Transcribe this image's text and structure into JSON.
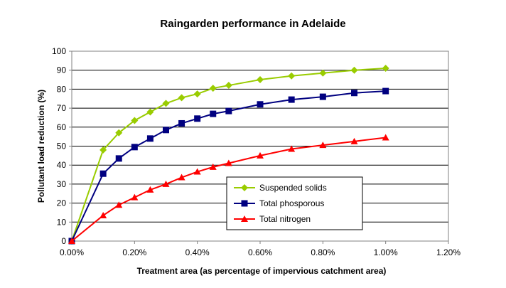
{
  "chart_data": {
    "type": "line",
    "title": "Raingarden performance in Adelaide",
    "xlabel": "Treatment area (as percentage of impervious catchment area)",
    "ylabel": "Pollutant load reduction (%)",
    "xlim": [
      0,
      1.2
    ],
    "ylim": [
      0,
      100
    ],
    "x_ticks": [
      0,
      0.2,
      0.4,
      0.6,
      0.8,
      1.0,
      1.2
    ],
    "x_tick_labels": [
      "0.00%",
      "0.20%",
      "0.40%",
      "0.60%",
      "0.80%",
      "1.00%",
      "1.20%"
    ],
    "y_ticks": [
      0,
      10,
      20,
      30,
      40,
      50,
      60,
      70,
      80,
      90,
      100
    ],
    "y_tick_labels": [
      "0",
      "10",
      "20",
      "30",
      "40",
      "50",
      "60",
      "70",
      "80",
      "90",
      "100"
    ],
    "grid": "horizontal major gridlines",
    "legend_position": "inside lower-right",
    "series": [
      {
        "name": "Suspended solids",
        "color": "#99CC00",
        "marker": "diamond",
        "x": [
          0,
          0.1,
          0.15,
          0.2,
          0.25,
          0.3,
          0.35,
          0.4,
          0.45,
          0.5,
          0.6,
          0.7,
          0.8,
          0.9,
          1.0
        ],
        "y": [
          0,
          48,
          57,
          63.5,
          68,
          72.5,
          75.5,
          77.5,
          80.5,
          82,
          85,
          87,
          88.5,
          90,
          91
        ]
      },
      {
        "name": "Total phosporous",
        "color": "#000080",
        "marker": "square",
        "x": [
          0,
          0.1,
          0.15,
          0.2,
          0.25,
          0.3,
          0.35,
          0.4,
          0.45,
          0.5,
          0.6,
          0.7,
          0.8,
          0.9,
          1.0
        ],
        "y": [
          0,
          35.5,
          43.5,
          49.5,
          54,
          58.5,
          62,
          64.5,
          67,
          68.5,
          72,
          74.5,
          76,
          78,
          79
        ]
      },
      {
        "name": "Total nitrogen",
        "color": "#FF0000",
        "marker": "triangle",
        "x": [
          0,
          0.1,
          0.15,
          0.2,
          0.25,
          0.3,
          0.35,
          0.4,
          0.45,
          0.5,
          0.6,
          0.7,
          0.8,
          0.9,
          1.0
        ],
        "y": [
          0,
          13.5,
          19,
          23,
          27,
          30,
          33.5,
          36.5,
          39,
          41,
          45,
          48.5,
          50.5,
          52.5,
          54.5
        ]
      }
    ]
  }
}
